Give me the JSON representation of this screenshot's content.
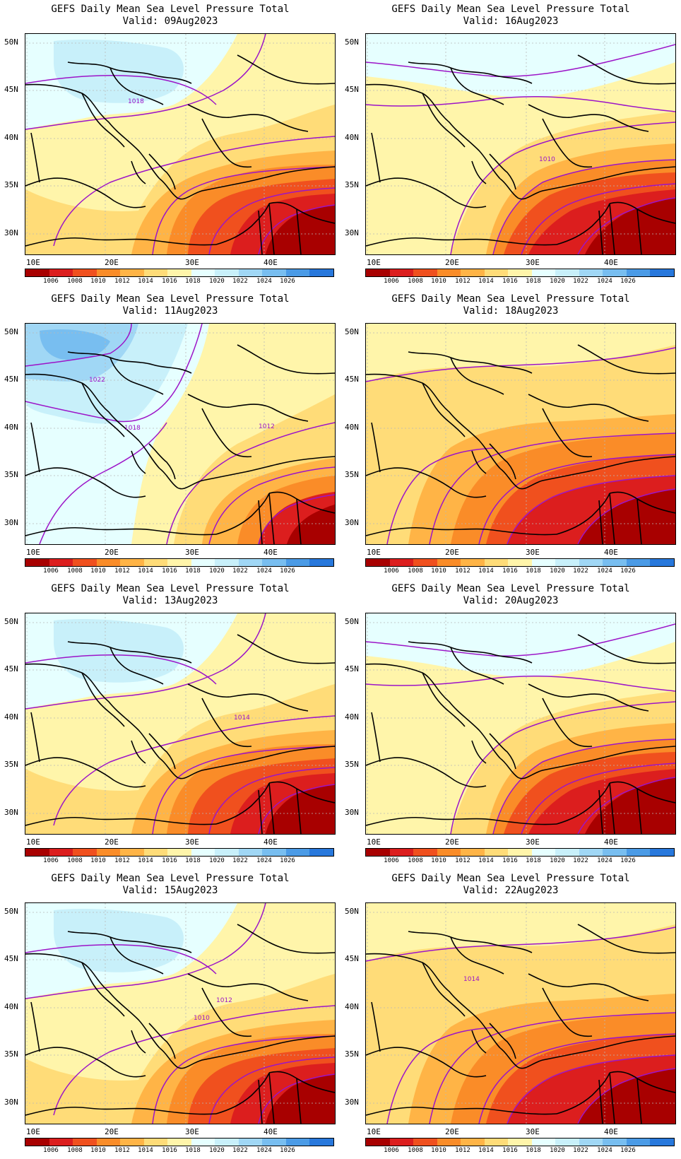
{
  "colorbar": {
    "labels": [
      "1006",
      "1008",
      "1010",
      "1012",
      "1014",
      "1016",
      "1018",
      "1020",
      "1022",
      "1024",
      "1026"
    ],
    "colors": [
      "#a80000",
      "#dc1e1e",
      "#f0501e",
      "#fa8c28",
      "#ffb446",
      "#ffdc78",
      "#fff5aa",
      "#e6ffff",
      "#c8f0fa",
      "#a0d7f5",
      "#78bef0",
      "#4b9be6",
      "#2878dc"
    ]
  },
  "lat_labels": [
    "50N",
    "45N",
    "40N",
    "35N",
    "30N"
  ],
  "lon_labels": [
    "10E",
    "20E",
    "30E",
    "40E"
  ],
  "panels": [
    {
      "id": "p09",
      "title": "GEFS Daily Mean Sea Level Pressure Total",
      "valid": "Valid: 09Aug2023",
      "contour_labels": [
        "1018"
      ],
      "pattern": "high_north"
    },
    {
      "id": "p16",
      "title": "GEFS Daily Mean Sea Level Pressure Total",
      "valid": "Valid: 16Aug2023",
      "contour_labels": [
        "1010"
      ],
      "pattern": "mid"
    },
    {
      "id": "p11",
      "title": "GEFS Daily Mean Sea Level Pressure Total",
      "valid": "Valid: 11Aug2023",
      "contour_labels": [
        "1022",
        "1018",
        "1012"
      ],
      "pattern": "high_west"
    },
    {
      "id": "p18",
      "title": "GEFS Daily Mean Sea Level Pressure Total",
      "valid": "Valid: 18Aug2023",
      "contour_labels": [],
      "pattern": "low_broad"
    },
    {
      "id": "p13",
      "title": "GEFS Daily Mean Sea Level Pressure Total",
      "valid": "Valid: 13Aug2023",
      "contour_labels": [
        "1014"
      ],
      "pattern": "high_north"
    },
    {
      "id": "p20",
      "title": "GEFS Daily Mean Sea Level Pressure Total",
      "valid": "Valid: 20Aug2023",
      "contour_labels": [],
      "pattern": "mid"
    },
    {
      "id": "p15",
      "title": "GEFS Daily Mean Sea Level Pressure Total",
      "valid": "Valid: 15Aug2023",
      "contour_labels": [
        "1012",
        "1010"
      ],
      "pattern": "high_north"
    },
    {
      "id": "p22",
      "title": "GEFS Daily Mean Sea Level Pressure Total",
      "valid": "Valid: 22Aug2023",
      "contour_labels": [
        "1014"
      ],
      "pattern": "low_broad"
    }
  ]
}
